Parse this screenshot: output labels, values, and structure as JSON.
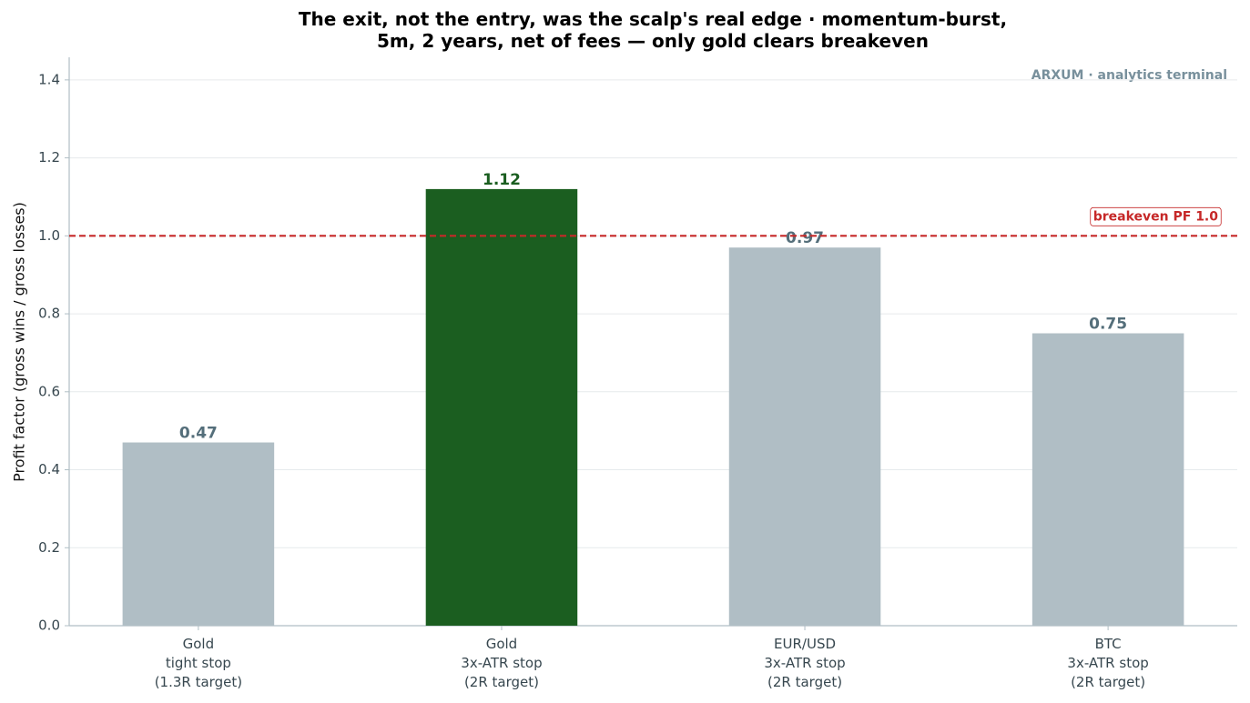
{
  "chart_data": {
    "type": "bar",
    "title": "The exit, not the entry, was the scalp's real edge · momentum-burst,\n5m, 2 years, net of fees — only gold clears breakeven",
    "ylabel": "Profit factor (gross wins / gross losses)",
    "watermark": "ARXUM · analytics terminal",
    "categories": [
      "Gold\ntight stop\n(1.3R target)",
      "Gold\n3x-ATR stop\n(2R target)",
      "EUR/USD\n3x-ATR stop\n(2R target)",
      "BTC\n3x-ATR stop\n(2R target)"
    ],
    "values": [
      0.47,
      1.12,
      0.97,
      0.75
    ],
    "colors": [
      "#b0bec5",
      "#1b5e20",
      "#b0bec5",
      "#b0bec5"
    ],
    "label_colors": [
      "#546e7a",
      "#1b5e20",
      "#546e7a",
      "#546e7a"
    ],
    "ylim": [
      0,
      1.458
    ],
    "yticks": [
      {
        "value": 0,
        "label": "0.0"
      },
      0.2,
      0.4,
      0.6,
      0.8,
      {
        "value": 1,
        "label": "1.0"
      },
      1.2,
      1.4
    ],
    "grid": true,
    "reference_line": {
      "value": 1,
      "label": "breakeven PF 1.0",
      "color": "#c62828"
    }
  }
}
